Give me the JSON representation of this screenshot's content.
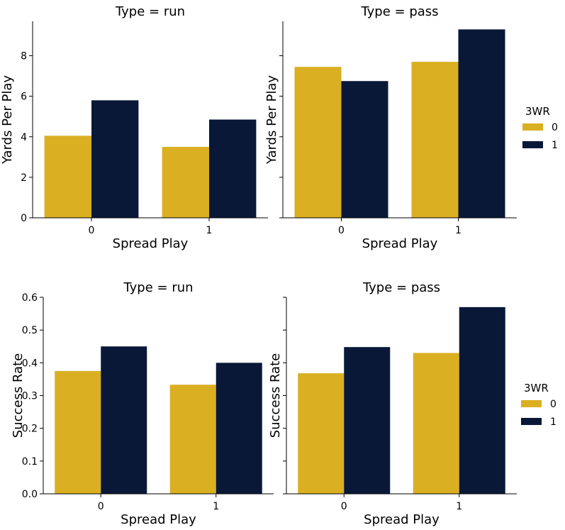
{
  "colors": {
    "series_0": "#DAAF22",
    "series_1": "#0A1838"
  },
  "chart_data": [
    {
      "type": "bar",
      "title": "Type = run",
      "xlabel": "Spread Play",
      "ylabel": "Yards Per Play",
      "categories": [
        "0",
        "1"
      ],
      "series": [
        {
          "name": "0",
          "values": [
            4.05,
            3.5
          ]
        },
        {
          "name": "1",
          "values": [
            5.8,
            4.85
          ]
        }
      ],
      "ylim": [
        0,
        9.7
      ],
      "yticks": [
        "0",
        "2",
        "4",
        "6",
        "8"
      ],
      "ytick_values": [
        0,
        2,
        4,
        6,
        8
      ],
      "show_ytick_labels": true
    },
    {
      "type": "bar",
      "title": "Type = pass",
      "xlabel": "Spread Play",
      "ylabel": "Yards Per Play",
      "categories": [
        "0",
        "1"
      ],
      "series": [
        {
          "name": "0",
          "values": [
            7.45,
            7.7
          ]
        },
        {
          "name": "1",
          "values": [
            6.75,
            9.3
          ]
        }
      ],
      "ylim": [
        0,
        9.7
      ],
      "yticks": [
        "0",
        "2",
        "4",
        "6",
        "8"
      ],
      "ytick_values": [
        0,
        2,
        4,
        6,
        8
      ],
      "show_ytick_labels": false,
      "legend": {
        "title": "3WR",
        "entries": [
          "0",
          "1"
        ],
        "placement": "right"
      }
    },
    {
      "type": "bar",
      "title": "Type = run",
      "xlabel": "Spread Play",
      "ylabel": "Success Rate",
      "categories": [
        "0",
        "1"
      ],
      "series": [
        {
          "name": "0",
          "values": [
            0.375,
            0.333
          ]
        },
        {
          "name": "1",
          "values": [
            0.45,
            0.4
          ]
        }
      ],
      "ylim": [
        0,
        0.6
      ],
      "yticks": [
        "0.0",
        "0.1",
        "0.2",
        "0.3",
        "0.4",
        "0.5",
        "0.6"
      ],
      "ytick_values": [
        0,
        0.1,
        0.2,
        0.3,
        0.4,
        0.5,
        0.6
      ],
      "show_ytick_labels": true
    },
    {
      "type": "bar",
      "title": "Type = pass",
      "xlabel": "Spread Play",
      "ylabel": "Success Rate",
      "categories": [
        "0",
        "1"
      ],
      "series": [
        {
          "name": "0",
          "values": [
            0.368,
            0.43
          ]
        },
        {
          "name": "1",
          "values": [
            0.448,
            0.57
          ]
        }
      ],
      "ylim": [
        0,
        0.6
      ],
      "yticks": [
        "0.0",
        "0.1",
        "0.2",
        "0.3",
        "0.4",
        "0.5",
        "0.6"
      ],
      "ytick_values": [
        0,
        0.1,
        0.2,
        0.3,
        0.4,
        0.5,
        0.6
      ],
      "show_ytick_labels": false,
      "legend": {
        "title": "3WR",
        "entries": [
          "0",
          "1"
        ],
        "placement": "right"
      }
    }
  ]
}
